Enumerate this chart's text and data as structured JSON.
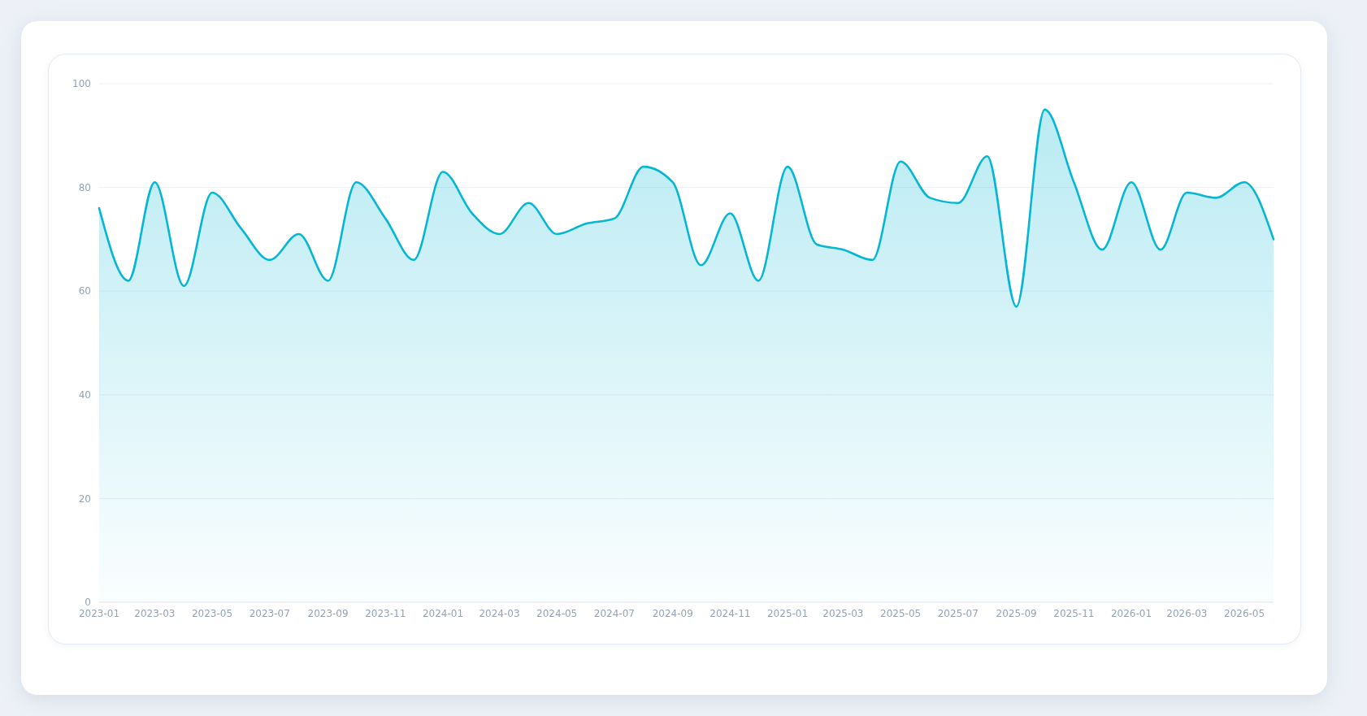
{
  "chart_data": {
    "type": "area",
    "color": "#06b6d4",
    "x": [
      "2023-01",
      "2023-02",
      "2023-03",
      "2023-04",
      "2023-05",
      "2023-06",
      "2023-07",
      "2023-08",
      "2023-09",
      "2023-10",
      "2023-11",
      "2023-12",
      "2024-01",
      "2024-02",
      "2024-03",
      "2024-04",
      "2024-05",
      "2024-06",
      "2024-07",
      "2024-08",
      "2024-09",
      "2024-10",
      "2024-11",
      "2024-12",
      "2025-01",
      "2025-02",
      "2025-03",
      "2025-04",
      "2025-05",
      "2025-06",
      "2025-07",
      "2025-08",
      "2025-09",
      "2025-10",
      "2025-11",
      "2025-12",
      "2026-01",
      "2026-02",
      "2026-03",
      "2026-04",
      "2026-05",
      "2026-06"
    ],
    "values": [
      76,
      62,
      81,
      61,
      79,
      72,
      66,
      71,
      62,
      81,
      74,
      66,
      83,
      75,
      71,
      77,
      71,
      73,
      74,
      84,
      81,
      65,
      75,
      62,
      84,
      69,
      68,
      66,
      85,
      78,
      77,
      86,
      57,
      95,
      81,
      68,
      81,
      68,
      79,
      78,
      81,
      70
    ],
    "xlim": [
      "2023-01",
      "2026-06"
    ],
    "xticks": [
      "2023-01",
      "2023-03",
      "2023-05",
      "2023-07",
      "2023-09",
      "2023-11",
      "2024-01",
      "2024-03",
      "2024-05",
      "2024-07",
      "2024-09",
      "2024-11",
      "2025-01",
      "2025-03",
      "2025-05",
      "2025-07",
      "2025-09",
      "2025-11",
      "2026-01",
      "2026-03",
      "2026-05"
    ],
    "ylim": [
      0,
      100
    ],
    "yticks": [
      0,
      20,
      40,
      60,
      80,
      100
    ],
    "grid": "y"
  }
}
